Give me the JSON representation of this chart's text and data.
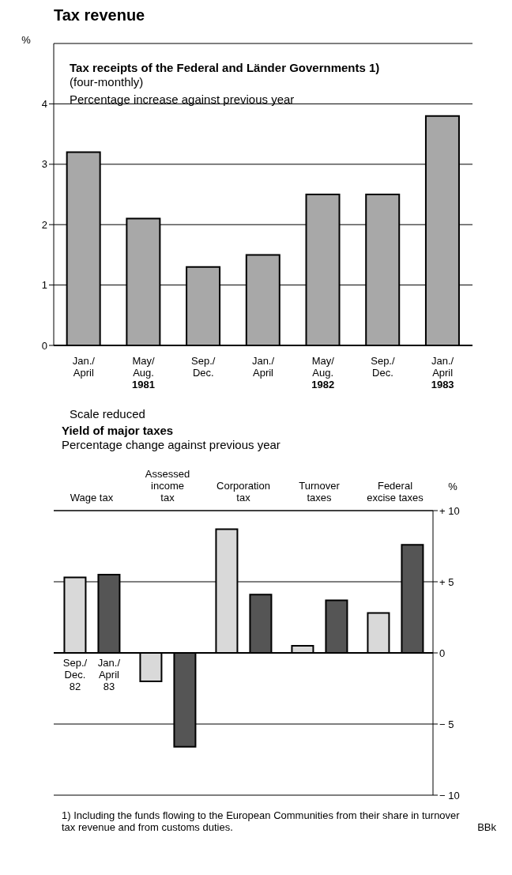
{
  "chart_data": [
    {
      "type": "bar",
      "title": "Tax revenue",
      "subtitle": "Tax receipts of the Federal and Länder Governments 1)",
      "annotations": [
        "(four-monthly)",
        "Percentage increase against previous year"
      ],
      "ylabel": "%",
      "categories": [
        "Jan./\nApril",
        "May/\nAug.\n1981",
        "Sep./\nDec.",
        "Jan./\nApril",
        "May/\nAug.\n1982",
        "Sep./\nDec.",
        "Jan./\nApril\n1983"
      ],
      "series": [
        {
          "color": "#a8a8a8",
          "values": [
            3.2,
            2.1,
            1.3,
            1.5,
            2.5,
            2.5,
            3.8
          ]
        }
      ],
      "ylim": [
        0,
        5
      ],
      "yticks": [
        0,
        1,
        2,
        3,
        4
      ],
      "grid": "y"
    },
    {
      "type": "bar",
      "title": "Yield of major taxes",
      "subtitle": "Percentage change against previous year",
      "ylabel": "%",
      "annotations": [
        "Scale reduced",
        "1) Including the funds flowing to the European Communities from their share in turnover tax revenue and from customs duties.",
        "BBk"
      ],
      "categories": [
        "Wage tax",
        "Assessed\nincome\ntax",
        "Corporation\ntax",
        "Turnover\ntaxes",
        "Federal\nexcise taxes"
      ],
      "series": [
        {
          "name": "Sep./\nDec.\n82",
          "color": "#d9d9d9",
          "values": [
            5.3,
            -2.0,
            8.7,
            0.5,
            2.8
          ]
        },
        {
          "name": "Jan./\nApril\n83",
          "color": "#555555",
          "values": [
            5.5,
            -6.6,
            4.1,
            3.7,
            7.6
          ]
        }
      ],
      "ylim": [
        -10,
        10
      ],
      "yticks": [
        {
          "value": 10,
          "label": "+ 10"
        },
        {
          "value": 5,
          "label": "+  5"
        },
        0,
        {
          "value": -5,
          "label": "−  5"
        },
        {
          "value": -10,
          "label": "− 10"
        }
      ],
      "grid": "y"
    }
  ]
}
